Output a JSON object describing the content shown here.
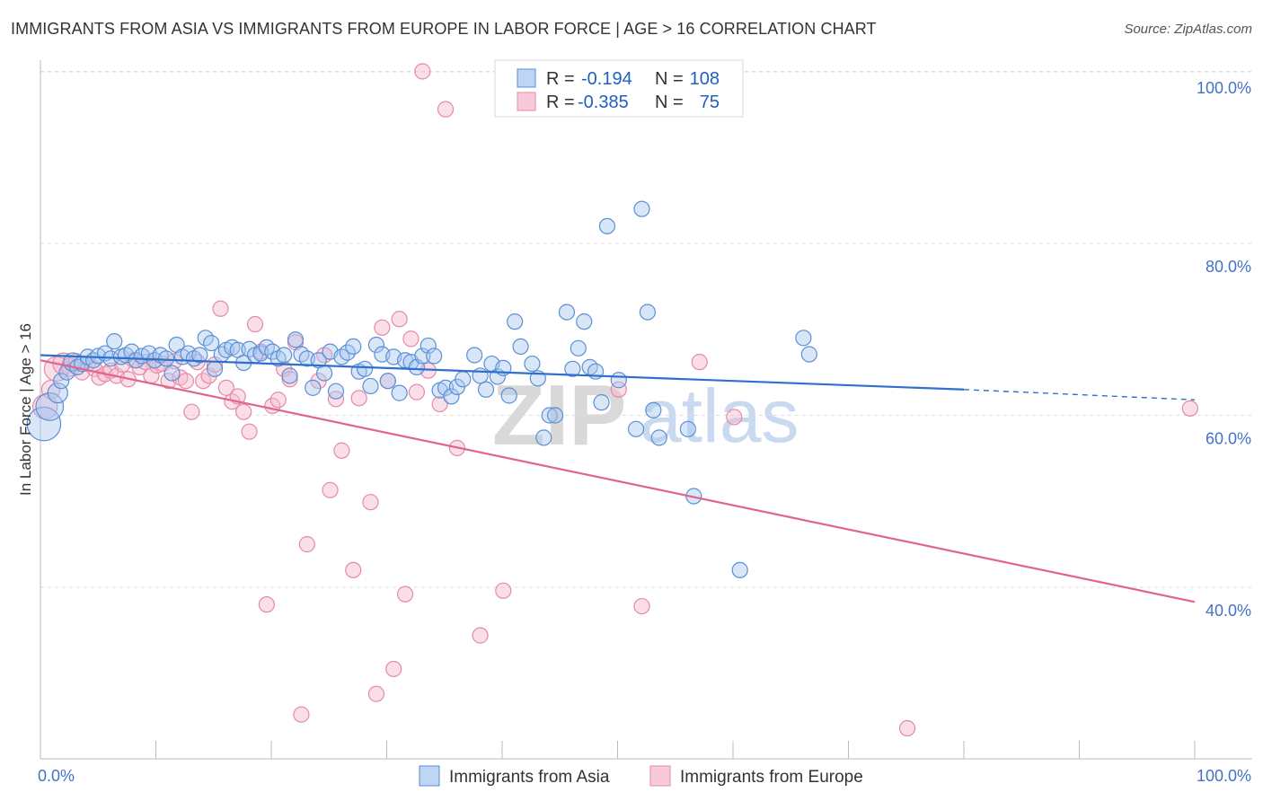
{
  "title": "IMMIGRANTS FROM ASIA VS IMMIGRANTS FROM EUROPE IN LABOR FORCE | AGE > 16 CORRELATION CHART",
  "source": "Source: ZipAtlas.com",
  "watermark": {
    "zip": "ZIP",
    "atlas": "atlas"
  },
  "legend": {
    "r_label": "R =",
    "n_label": "N =",
    "rows": [
      {
        "r": "-0.194",
        "n": "108"
      },
      {
        "r": "-0.385",
        "n": "75"
      }
    ]
  },
  "colors": {
    "asia_fill": "#a8c8f0",
    "asia_stroke": "#5b8fd6",
    "asia_line": "#2f6fce",
    "europe_fill": "#f6b8cc",
    "europe_stroke": "#e48aa8",
    "europe_line": "#e0648e"
  },
  "chart_data": {
    "type": "scatter",
    "title": "IMMIGRANTS FROM ASIA VS IMMIGRANTS FROM EUROPE IN LABOR FORCE | AGE > 16 CORRELATION CHART",
    "xlabel": "",
    "ylabel": "In Labor Force | Age > 16",
    "xlim": [
      0,
      100
    ],
    "ylim": [
      20,
      104
    ],
    "x_tick_labels": [
      "0.0%",
      "100.0%"
    ],
    "y_ticks": [
      40,
      60,
      80,
      100
    ],
    "y_tick_labels": [
      "40.0%",
      "60.0%",
      "80.0%",
      "100.0%"
    ],
    "grid": true,
    "legend_position": "top-center",
    "series": [
      {
        "name": "Immigrants from Asia",
        "trend": {
          "x": [
            0,
            80,
            100
          ],
          "y": [
            67.0,
            63.0,
            61.8
          ],
          "dashed_from": 80
        },
        "points": [
          [
            0.3,
            59.0,
            2.2
          ],
          [
            0.8,
            61.0,
            1.8
          ],
          [
            1.5,
            62.6,
            1.3
          ],
          [
            1.8,
            64.0,
            1
          ],
          [
            2.3,
            65.0,
            1
          ],
          [
            2.8,
            66.2,
            1.2
          ],
          [
            3.2,
            65.6,
            1
          ],
          [
            3.6,
            66.0,
            1
          ],
          [
            4.1,
            66.8,
            1
          ],
          [
            4.6,
            66.4,
            1
          ],
          [
            5.0,
            66.9,
            1
          ],
          [
            5.6,
            67.2,
            1
          ],
          [
            6.1,
            66.6,
            1
          ],
          [
            6.4,
            68.6,
            1
          ],
          [
            7.0,
            66.8,
            1
          ],
          [
            7.4,
            67.0,
            1
          ],
          [
            7.9,
            67.4,
            1
          ],
          [
            8.3,
            66.4,
            1
          ],
          [
            8.8,
            66.9,
            1
          ],
          [
            9.4,
            67.2,
            1
          ],
          [
            9.9,
            66.4,
            1
          ],
          [
            10.4,
            67.0,
            1
          ],
          [
            10.9,
            66.6,
            1
          ],
          [
            11.4,
            64.9,
            1
          ],
          [
            11.8,
            68.2,
            1
          ],
          [
            12.3,
            66.8,
            1
          ],
          [
            12.8,
            67.2,
            1
          ],
          [
            13.3,
            66.6,
            1
          ],
          [
            13.8,
            67.0,
            1
          ],
          [
            14.3,
            69.0,
            1
          ],
          [
            14.8,
            68.4,
            1
          ],
          [
            15.1,
            65.4,
            1
          ],
          [
            15.7,
            67.1,
            1
          ],
          [
            16.1,
            67.6,
            1
          ],
          [
            16.6,
            67.9,
            1
          ],
          [
            17.1,
            67.6,
            1
          ],
          [
            17.6,
            66.1,
            1
          ],
          [
            18.1,
            67.7,
            1
          ],
          [
            18.6,
            67.0,
            1
          ],
          [
            19.1,
            67.2,
            1
          ],
          [
            19.6,
            67.9,
            1
          ],
          [
            20.1,
            67.4,
            1
          ],
          [
            20.6,
            66.6,
            1
          ],
          [
            21.1,
            67.0,
            1
          ],
          [
            21.6,
            64.6,
            1
          ],
          [
            22.1,
            68.8,
            1
          ],
          [
            22.6,
            67.1,
            1
          ],
          [
            23.1,
            66.6,
            1
          ],
          [
            23.6,
            63.2,
            1
          ],
          [
            24.1,
            66.4,
            1
          ],
          [
            24.6,
            64.9,
            1
          ],
          [
            25.1,
            67.4,
            1
          ],
          [
            25.6,
            62.8,
            1
          ],
          [
            26.1,
            66.8,
            1
          ],
          [
            26.6,
            67.3,
            1
          ],
          [
            27.1,
            68.0,
            1
          ],
          [
            27.6,
            65.1,
            1
          ],
          [
            28.1,
            65.4,
            1
          ],
          [
            28.6,
            63.4,
            1
          ],
          [
            29.1,
            68.2,
            1
          ],
          [
            29.6,
            67.1,
            1
          ],
          [
            30.1,
            64.0,
            1
          ],
          [
            30.6,
            66.8,
            1
          ],
          [
            31.1,
            62.6,
            1
          ],
          [
            31.6,
            66.4,
            1
          ],
          [
            32.1,
            66.2,
            1
          ],
          [
            32.6,
            65.6,
            1
          ],
          [
            33.1,
            66.9,
            1
          ],
          [
            33.6,
            68.1,
            1
          ],
          [
            34.1,
            66.9,
            1
          ],
          [
            34.6,
            62.9,
            1
          ],
          [
            35.1,
            63.2,
            1
          ],
          [
            35.6,
            62.2,
            1
          ],
          [
            36.1,
            63.3,
            1
          ],
          [
            36.6,
            64.2,
            1
          ],
          [
            37.6,
            67.0,
            1
          ],
          [
            38.1,
            64.6,
            1
          ],
          [
            38.6,
            63.0,
            1
          ],
          [
            39.1,
            66.0,
            1
          ],
          [
            39.6,
            64.5,
            1
          ],
          [
            40.1,
            65.5,
            1
          ],
          [
            40.6,
            62.3,
            1
          ],
          [
            41.1,
            70.9,
            1
          ],
          [
            41.6,
            68.0,
            1
          ],
          [
            42.6,
            66.0,
            1
          ],
          [
            43.1,
            64.3,
            1
          ],
          [
            43.6,
            57.4,
            1
          ],
          [
            44.1,
            60.0,
            1
          ],
          [
            44.6,
            60.0,
            1
          ],
          [
            45.6,
            72.0,
            1
          ],
          [
            46.1,
            65.4,
            1
          ],
          [
            46.6,
            67.8,
            1
          ],
          [
            47.1,
            70.9,
            1
          ],
          [
            47.6,
            65.6,
            1
          ],
          [
            48.1,
            65.1,
            1
          ],
          [
            48.6,
            61.5,
            1
          ],
          [
            49.1,
            82.0,
            1
          ],
          [
            50.1,
            64.1,
            1
          ],
          [
            51.6,
            58.4,
            1
          ],
          [
            52.1,
            84.0,
            1
          ],
          [
            52.6,
            72.0,
            1
          ],
          [
            53.1,
            60.6,
            1
          ],
          [
            53.6,
            57.4,
            1
          ],
          [
            56.1,
            58.4,
            1
          ],
          [
            56.6,
            50.6,
            1
          ],
          [
            60.6,
            42.0,
            1
          ],
          [
            66.1,
            69.0,
            1
          ],
          [
            66.6,
            67.1,
            1
          ]
        ]
      },
      {
        "name": "Immigrants from Europe",
        "trend": {
          "x": [
            0,
            100
          ],
          "y": [
            66.4,
            38.3
          ]
        },
        "points": [
          [
            0.4,
            61.0,
            1.6
          ],
          [
            0.9,
            63.0,
            1.2
          ],
          [
            1.4,
            65.4,
            1.6
          ],
          [
            2.0,
            66.0,
            1.4
          ],
          [
            2.6,
            65.6,
            1.2
          ],
          [
            3.1,
            66.3,
            1
          ],
          [
            3.6,
            65.0,
            1
          ],
          [
            4.1,
            66.0,
            1
          ],
          [
            4.7,
            65.4,
            1
          ],
          [
            5.1,
            64.4,
            1
          ],
          [
            5.6,
            64.8,
            1
          ],
          [
            6.1,
            65.2,
            1
          ],
          [
            6.6,
            64.6,
            1
          ],
          [
            7.1,
            65.9,
            1
          ],
          [
            7.6,
            64.2,
            1
          ],
          [
            8.1,
            66.4,
            1
          ],
          [
            8.6,
            65.6,
            1
          ],
          [
            9.1,
            66.2,
            1
          ],
          [
            9.6,
            64.6,
            1
          ],
          [
            10.1,
            65.8,
            1
          ],
          [
            10.6,
            66.0,
            1
          ],
          [
            11.1,
            64.0,
            1
          ],
          [
            11.6,
            66.3,
            1
          ],
          [
            12.1,
            64.4,
            1
          ],
          [
            12.6,
            64.0,
            1
          ],
          [
            13.1,
            60.4,
            1
          ],
          [
            13.6,
            66.2,
            1
          ],
          [
            14.1,
            64.0,
            1
          ],
          [
            14.6,
            64.6,
            1
          ],
          [
            15.1,
            65.9,
            1
          ],
          [
            15.6,
            72.4,
            1
          ],
          [
            16.1,
            63.2,
            1
          ],
          [
            16.6,
            61.6,
            1
          ],
          [
            17.1,
            62.2,
            1
          ],
          [
            17.6,
            60.4,
            1
          ],
          [
            18.1,
            58.1,
            1
          ],
          [
            18.6,
            70.6,
            1
          ],
          [
            19.1,
            67.4,
            1
          ],
          [
            19.6,
            38.0,
            1
          ],
          [
            20.1,
            61.1,
            1
          ],
          [
            20.6,
            61.8,
            1
          ],
          [
            21.1,
            65.4,
            1
          ],
          [
            21.6,
            64.2,
            1
          ],
          [
            22.1,
            68.5,
            1
          ],
          [
            22.6,
            25.2,
            1
          ],
          [
            23.1,
            45.0,
            1
          ],
          [
            24.1,
            64.0,
            1
          ],
          [
            24.6,
            67.0,
            1
          ],
          [
            25.1,
            51.3,
            1
          ],
          [
            25.6,
            61.9,
            1
          ],
          [
            26.1,
            55.9,
            1
          ],
          [
            27.1,
            42.0,
            1
          ],
          [
            27.6,
            62.0,
            1
          ],
          [
            28.6,
            49.9,
            1
          ],
          [
            29.1,
            27.6,
            1
          ],
          [
            29.6,
            70.2,
            1
          ],
          [
            30.1,
            64.0,
            1
          ],
          [
            30.6,
            30.5,
            1
          ],
          [
            31.1,
            71.2,
            1
          ],
          [
            31.6,
            39.2,
            1
          ],
          [
            32.1,
            68.9,
            1
          ],
          [
            32.6,
            62.7,
            1
          ],
          [
            33.1,
            100.0,
            1
          ],
          [
            33.6,
            65.2,
            1
          ],
          [
            34.6,
            61.3,
            1
          ],
          [
            35.1,
            95.6,
            1
          ],
          [
            36.1,
            56.2,
            1
          ],
          [
            38.1,
            34.4,
            1
          ],
          [
            40.1,
            39.6,
            1
          ],
          [
            50.1,
            63.0,
            1
          ],
          [
            52.1,
            37.8,
            1
          ],
          [
            57.1,
            66.2,
            1
          ],
          [
            60.1,
            59.8,
            1
          ],
          [
            75.1,
            23.6,
            1
          ],
          [
            99.6,
            60.8,
            1
          ]
        ]
      }
    ]
  }
}
